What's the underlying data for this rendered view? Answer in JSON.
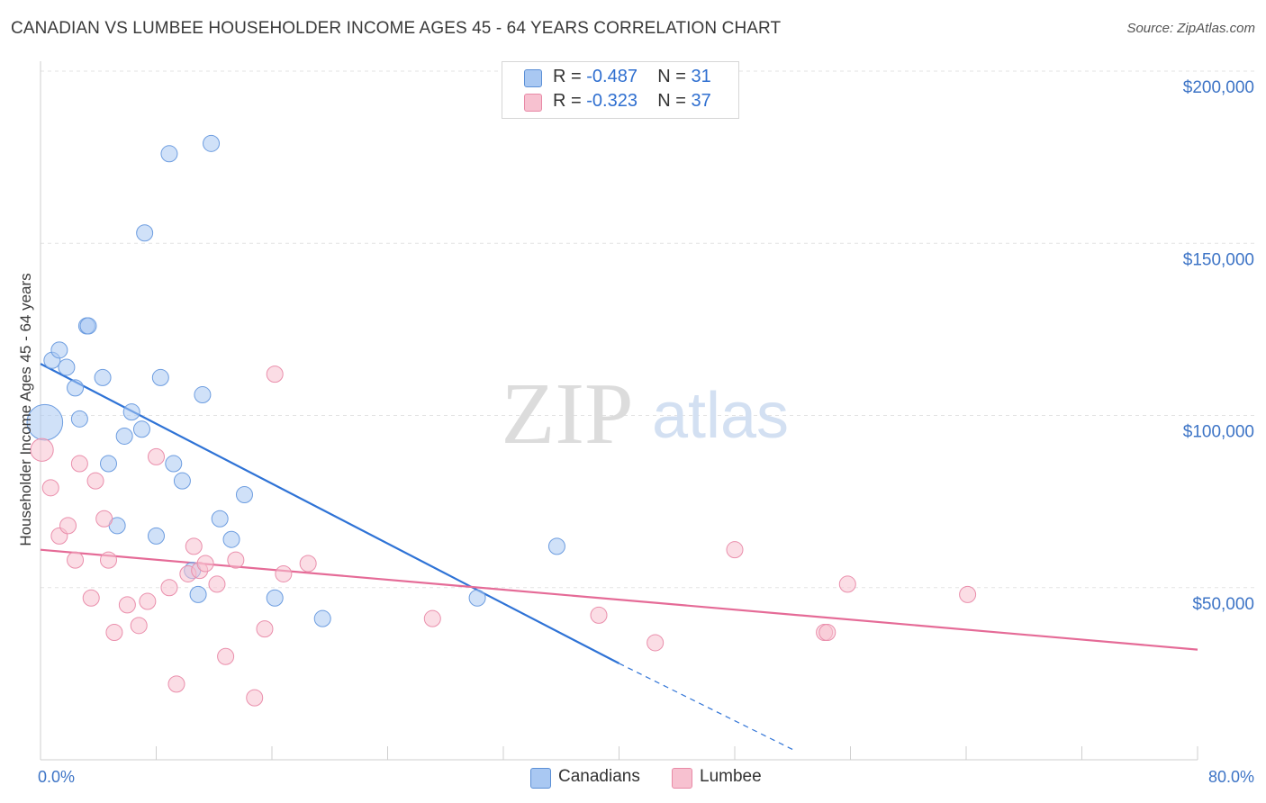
{
  "title": "CANADIAN VS LUMBEE HOUSEHOLDER INCOME AGES 45 - 64 YEARS CORRELATION CHART",
  "source": "Source: ZipAtlas.com",
  "watermark": {
    "zip": "ZIP",
    "atlas": "atlas"
  },
  "legend": {
    "r_label": "R =",
    "n_label": "N =",
    "rows": [
      {
        "r": "-0.487",
        "n": "31",
        "color": "#a9c8f2",
        "border": "#5b8fd6"
      },
      {
        "r": "-0.323",
        "n": "37",
        "color": "#f7c1d0",
        "border": "#e889a6"
      }
    ]
  },
  "bottom_legend": [
    "Canadians",
    "Lumbee"
  ],
  "chart_data": {
    "type": "scatter",
    "title": "CANADIAN VS LUMBEE HOUSEHOLDER INCOME AGES 45 - 64 YEARS CORRELATION CHART",
    "xlabel": "",
    "ylabel": "Householder Income Ages 45 - 64 years",
    "xlim": [
      0,
      80
    ],
    "ylim": [
      0,
      200000
    ],
    "x_ticks": [
      "0.0%",
      "80.0%"
    ],
    "y_ticks": [
      {
        "value": 50000,
        "label": "$50,000"
      },
      {
        "value": 100000,
        "label": "$100,000"
      },
      {
        "value": 150000,
        "label": "$150,000"
      },
      {
        "value": 200000,
        "label": "$200,000"
      }
    ],
    "grid": true,
    "legend_position": "top-center",
    "series": [
      {
        "name": "Canadians",
        "color": "#a9c8f2",
        "edge": "#6d9de0",
        "line_color": "#2f73d6",
        "trend": {
          "x0": 0,
          "y0": 115000,
          "x1": 40,
          "y1": 28000,
          "dash_to_x": 52,
          "dash_to_y": 3000
        },
        "points": [
          [
            0.3,
            98000,
            2.2
          ],
          [
            0.8,
            116000,
            1
          ],
          [
            1.3,
            119000,
            1
          ],
          [
            1.8,
            114000,
            1
          ],
          [
            2.4,
            108000,
            1
          ],
          [
            2.7,
            99000,
            1
          ],
          [
            3.2,
            126000,
            1
          ],
          [
            3.3,
            126000,
            1
          ],
          [
            4.3,
            111000,
            1
          ],
          [
            4.7,
            86000,
            1
          ],
          [
            5.3,
            68000,
            1
          ],
          [
            5.8,
            94000,
            1
          ],
          [
            6.3,
            101000,
            1
          ],
          [
            7.0,
            96000,
            1
          ],
          [
            7.2,
            153000,
            1
          ],
          [
            8.0,
            65000,
            1
          ],
          [
            8.3,
            111000,
            1
          ],
          [
            8.9,
            176000,
            1
          ],
          [
            9.2,
            86000,
            1
          ],
          [
            9.8,
            81000,
            1
          ],
          [
            10.5,
            55000,
            1
          ],
          [
            10.9,
            48000,
            1
          ],
          [
            11.2,
            106000,
            1
          ],
          [
            11.8,
            179000,
            1
          ],
          [
            12.4,
            70000,
            1
          ],
          [
            13.2,
            64000,
            1
          ],
          [
            14.1,
            77000,
            1
          ],
          [
            16.2,
            47000,
            1
          ],
          [
            19.5,
            41000,
            1
          ],
          [
            30.2,
            47000,
            1
          ],
          [
            35.7,
            62000,
            1
          ]
        ]
      },
      {
        "name": "Lumbee",
        "color": "#f7c1d0",
        "edge": "#ea8fac",
        "line_color": "#e56b97",
        "trend": {
          "x0": 0,
          "y0": 61000,
          "x1": 80,
          "y1": 32000
        },
        "points": [
          [
            0.1,
            90000,
            1.4
          ],
          [
            0.7,
            79000,
            1
          ],
          [
            1.3,
            65000,
            1
          ],
          [
            1.9,
            68000,
            1
          ],
          [
            2.4,
            58000,
            1
          ],
          [
            2.7,
            86000,
            1
          ],
          [
            3.5,
            47000,
            1
          ],
          [
            3.8,
            81000,
            1
          ],
          [
            4.4,
            70000,
            1
          ],
          [
            4.7,
            58000,
            1
          ],
          [
            5.1,
            37000,
            1
          ],
          [
            6.0,
            45000,
            1
          ],
          [
            6.8,
            39000,
            1
          ],
          [
            7.4,
            46000,
            1
          ],
          [
            8.0,
            88000,
            1
          ],
          [
            8.9,
            50000,
            1
          ],
          [
            9.4,
            22000,
            1
          ],
          [
            10.2,
            54000,
            1
          ],
          [
            10.6,
            62000,
            1
          ],
          [
            11.0,
            55000,
            1
          ],
          [
            11.4,
            57000,
            1
          ],
          [
            12.2,
            51000,
            1
          ],
          [
            12.8,
            30000,
            1
          ],
          [
            13.5,
            58000,
            1
          ],
          [
            14.8,
            18000,
            1
          ],
          [
            15.5,
            38000,
            1
          ],
          [
            16.2,
            112000,
            1
          ],
          [
            16.8,
            54000,
            1
          ],
          [
            18.5,
            57000,
            1
          ],
          [
            27.1,
            41000,
            1
          ],
          [
            38.6,
            42000,
            1
          ],
          [
            42.5,
            34000,
            1
          ],
          [
            48.0,
            61000,
            1
          ],
          [
            54.2,
            37000,
            1
          ],
          [
            54.4,
            37000,
            1
          ],
          [
            55.8,
            51000,
            1
          ],
          [
            64.1,
            48000,
            1
          ]
        ]
      }
    ]
  }
}
